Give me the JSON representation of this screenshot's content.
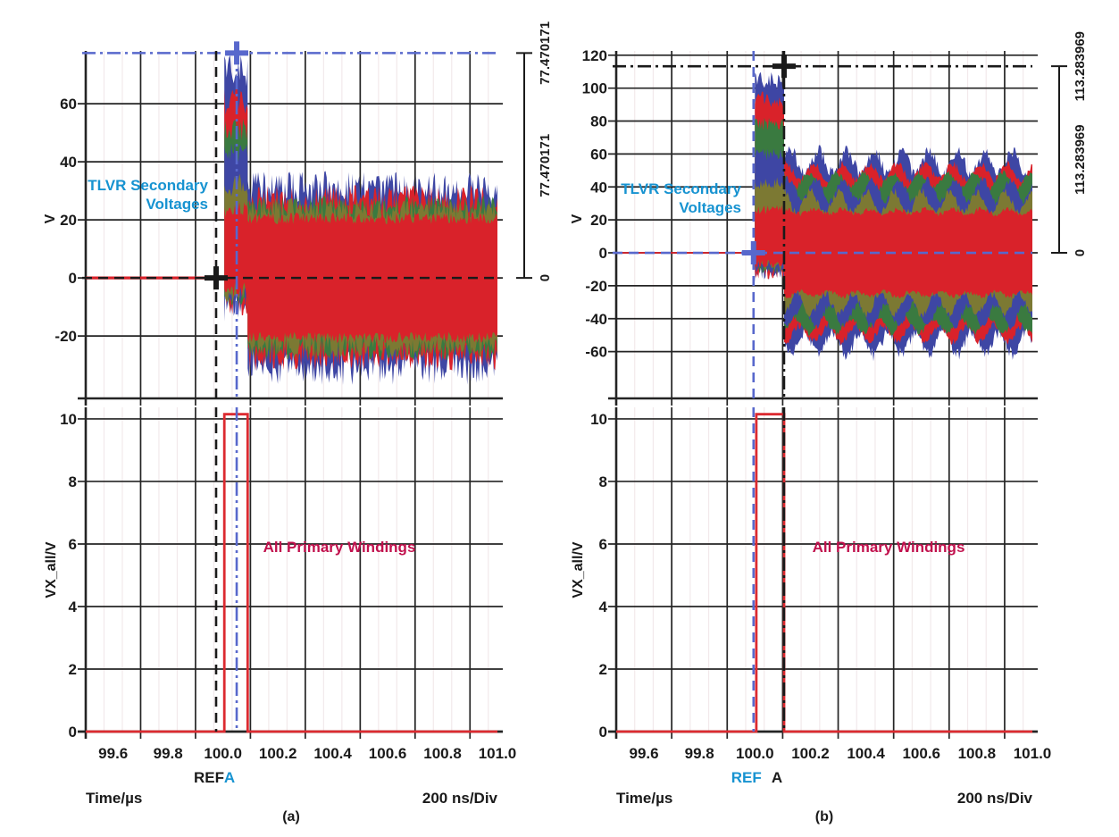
{
  "figure": {
    "palette": {
      "red": "#d9222a",
      "green": "#3a7a40",
      "olive": "#7c7933",
      "blue": "#3e46a4",
      "cursor_blue": "#5868cc",
      "cyan_text": "#1793d1",
      "crimson_text": "#c1114d",
      "black": "#1a1a1a",
      "pulse_red": "#dc2a30",
      "grid": "#242424",
      "grid_minor": "#f2e9eb"
    },
    "panels": [
      {
        "caption": "(a)",
        "time_label": "Time/µs",
        "div_label": "200 ns/Div",
        "v_label": "V",
        "vx_label": "VX_all/V",
        "secondary_line1": "TLVR Secondary",
        "secondary_line2": "Voltages",
        "primary_label": "All Primary Windings"
      },
      {
        "caption": "(b)",
        "time_label": "Time/µs",
        "div_label": "200 ns/Div",
        "v_label": "V",
        "vx_label": "VX_all/V",
        "secondary_line1": "TLVR Secondary",
        "secondary_line2": "Voltages",
        "primary_label": "All Primary Windings"
      }
    ]
  },
  "chart_data": [
    {
      "id": "a_top",
      "type": "area",
      "title": "TLVR Secondary Voltages",
      "ylabel": "V",
      "x_range": [
        99.5,
        101.0
      ],
      "y_range": [
        -41.5,
        78.2
      ],
      "y_ticks": [
        -20,
        0,
        20,
        40,
        60
      ],
      "x_major_step": 0.2,
      "x_minor_div": 3,
      "grid": true,
      "legend": "none",
      "hlines": [
        {
          "y": 77.470171,
          "color": "cursor_blue",
          "style": "dashdot"
        },
        {
          "y": 0,
          "color": "black",
          "style": "dashed"
        }
      ],
      "vlines": [
        {
          "x": 99.975,
          "color": "black",
          "style": "dashed"
        },
        {
          "x": 100.05,
          "color": "cursor_blue",
          "style": "dashdot"
        }
      ],
      "markers": [
        {
          "x": 99.975,
          "y": 0,
          "color": "black"
        },
        {
          "x": 100.05,
          "y": 77.470171,
          "color": "cursor_blue"
        }
      ],
      "bracket": {
        "top_value": 77.470171,
        "bottom_value": 0,
        "label_top": "77.470171",
        "label_mid": "77.470171",
        "label_bottom": "0"
      },
      "bands": {
        "layer_colors": [
          "blue",
          "red",
          "green",
          "blue",
          "olive",
          "red"
        ],
        "segments": [
          {
            "x0": 99.5,
            "x1": 100.005,
            "name": "flat-zero",
            "layers": [
              [
                0,
                0,
                0
              ],
              [
                0,
                0,
                0
              ],
              [
                0,
                0,
                0
              ],
              [
                0,
                0,
                0
              ],
              [
                0,
                0,
                0
              ],
              [
                -0.5,
                0.5,
                0
              ]
            ]
          },
          {
            "x0": 100.005,
            "x1": 100.09,
            "name": "turn-on-burst",
            "layers": [
              [
                -9,
                71,
                6
              ],
              [
                -8,
                61,
                5
              ],
              [
                -7,
                51,
                4
              ],
              [
                -6,
                43,
                4
              ],
              [
                -5,
                32,
                4
              ],
              [
                -4,
                24,
                3
              ]
            ]
          },
          {
            "x0": 100.09,
            "x1": 101.0,
            "name": "steady-state",
            "layers": [
              [
                -31,
                31,
                6
              ],
              [
                -27,
                27,
                5
              ],
              [
                -24.5,
                24.5,
                4
              ],
              [
                0,
                0,
                0
              ],
              [
                -23.5,
                23.5,
                4
              ],
              [
                -20.5,
                20.5,
                2
              ]
            ]
          }
        ]
      }
    },
    {
      "id": "a_bot",
      "type": "line",
      "ylabel": "VX_all/V",
      "xlabel": "Time/µs",
      "x_range": [
        99.5,
        101.0
      ],
      "y_range": [
        0,
        10.37
      ],
      "y_ticks": [
        0,
        2,
        4,
        6,
        8,
        10
      ],
      "x_ticks": [
        99.6,
        99.8,
        100.0,
        100.2,
        100.4,
        100.6,
        100.8,
        101.0
      ],
      "x_major_step": 0.2,
      "x_minor_div": 3,
      "grid": true,
      "series": [
        {
          "name": "all-primary-windings",
          "color": "pulse_red",
          "points": [
            [
              99.5,
              0
            ],
            [
              100.005,
              0
            ],
            [
              100.005,
              10.15
            ],
            [
              100.09,
              10.15
            ],
            [
              100.09,
              0
            ],
            [
              101.0,
              0
            ]
          ]
        }
      ],
      "vlines": [
        {
          "x": 99.975,
          "color": "black",
          "style": "dashed",
          "label": "REF",
          "label_color": "black"
        },
        {
          "x": 100.05,
          "color": "cursor_blue",
          "style": "dashdot",
          "label": "A",
          "label_color": "cyan_text"
        }
      ],
      "annotation": "All Primary Windings"
    },
    {
      "id": "b_top",
      "type": "area",
      "title": "TLVR Secondary Voltages",
      "ylabel": "V",
      "x_range": [
        99.5,
        101.0
      ],
      "y_range": [
        -88.4,
        122.6
      ],
      "y_ticks": [
        -60,
        -40,
        -20,
        0,
        20,
        40,
        60,
        80,
        100,
        120
      ],
      "x_major_step": 0.2,
      "x_minor_div": 3,
      "grid": true,
      "legend": "none",
      "hlines": [
        {
          "y": 113.283969,
          "color": "black",
          "style": "dashdot"
        },
        {
          "y": 0,
          "color": "cursor_blue",
          "style": "dashed"
        }
      ],
      "vlines": [
        {
          "x": 99.995,
          "color": "cursor_blue",
          "style": "dashed"
        },
        {
          "x": 100.105,
          "color": "black",
          "style": "dashdot"
        }
      ],
      "markers": [
        {
          "x": 99.995,
          "y": 0,
          "color": "cursor_blue"
        },
        {
          "x": 100.105,
          "y": 113.283969,
          "color": "black"
        }
      ],
      "bracket": {
        "top_value": 113.283969,
        "bottom_value": 0,
        "label_top": "113.283969",
        "label_mid": "113.283969",
        "label_bottom": "0"
      },
      "bands": {
        "layer_colors": [
          "blue",
          "red",
          "green",
          "blue",
          "olive",
          "red"
        ],
        "segments": [
          {
            "x0": 99.5,
            "x1": 100.0,
            "name": "flat-zero",
            "layers": [
              [
                0,
                0,
                0
              ],
              [
                0,
                0,
                0
              ],
              [
                0,
                0,
                0
              ],
              [
                0,
                0,
                0
              ],
              [
                0,
                0,
                0
              ],
              [
                -0.5,
                0.5,
                0
              ]
            ]
          },
          {
            "x0": 100.0,
            "x1": 100.105,
            "name": "turn-on-burst",
            "layers": [
              [
                -12,
                104,
                6
              ],
              [
                -11,
                93,
                5
              ],
              [
                -10,
                78,
                4
              ],
              [
                -9,
                60,
                4
              ],
              [
                -8,
                42,
                4
              ],
              [
                -7,
                26,
                3
              ]
            ]
          },
          {
            "x0": 100.105,
            "x1": 101.0,
            "name": "steady-state-scalloped",
            "layers": [
              [
                -55,
                55,
                4,
                7,
                0.1
              ],
              [
                -49,
                49,
                2.5,
                5,
                0.1
              ],
              [
                -44,
                44,
                2,
                4.5,
                0.1
              ],
              [
                -38,
                38,
                2.5,
                6.5,
                0.1
              ],
              [
                -31,
                31,
                2.5,
                6.5,
                0.1
              ],
              [
                -25,
                25,
                1.5,
                1.5,
                0.1
              ]
            ]
          }
        ]
      }
    },
    {
      "id": "b_bot",
      "type": "line",
      "ylabel": "VX_all/V",
      "xlabel": "Time/µs",
      "x_range": [
        99.5,
        101.0
      ],
      "y_range": [
        0,
        10.37
      ],
      "y_ticks": [
        0,
        2,
        4,
        6,
        8,
        10
      ],
      "x_ticks": [
        99.6,
        99.8,
        100.0,
        100.2,
        100.4,
        100.6,
        100.8,
        101.0
      ],
      "x_major_step": 0.2,
      "x_minor_div": 3,
      "grid": true,
      "series": [
        {
          "name": "all-primary-windings",
          "color": "pulse_red",
          "points": [
            [
              99.5,
              0
            ],
            [
              100.005,
              0
            ],
            [
              100.005,
              10.15
            ],
            [
              100.105,
              10.15
            ],
            [
              100.105,
              0
            ],
            [
              101.0,
              0
            ]
          ]
        }
      ],
      "vlines": [
        {
          "x": 99.995,
          "color": "cursor_blue",
          "style": "dashed",
          "label": "REF",
          "label_color": "cyan_text"
        },
        {
          "x": 100.105,
          "color": "black",
          "style": "dashdot",
          "label": "A",
          "label_color": "black"
        }
      ],
      "annotation": "All Primary Windings"
    }
  ]
}
